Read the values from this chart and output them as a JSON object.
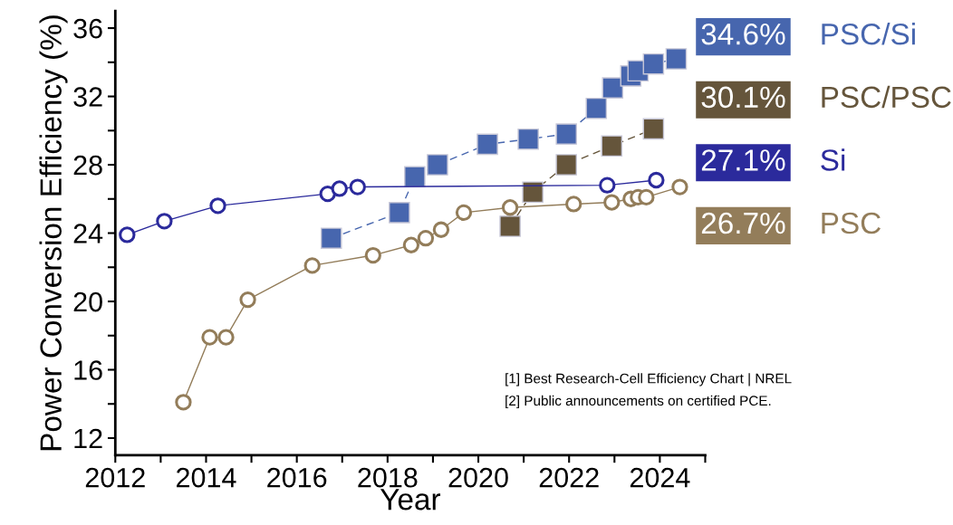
{
  "chart_data": {
    "type": "line",
    "xlabel": "Year",
    "ylabel": "Power Conversion Efficiency (%)",
    "xlim": [
      2012,
      2025
    ],
    "ylim": [
      11,
      37
    ],
    "xticks": [
      2012,
      {
        "value": 2013,
        "label": null
      },
      2014,
      {
        "value": 2015,
        "label": null
      },
      2016,
      {
        "value": 2017,
        "label": null
      },
      2018,
      {
        "value": 2019,
        "label": null
      },
      2020,
      {
        "value": 2021,
        "label": null
      },
      2022,
      {
        "value": 2023,
        "label": null
      },
      2024,
      {
        "value": 2025,
        "label": null
      }
    ],
    "yticks": [
      12,
      {
        "value": 14,
        "label": null
      },
      16,
      {
        "value": 18,
        "label": null
      },
      20,
      {
        "value": 22,
        "label": null
      },
      24,
      {
        "value": 26,
        "label": null
      },
      28,
      {
        "value": 30,
        "label": null
      },
      32,
      {
        "value": 34,
        "label": null
      },
      36
    ],
    "grid": false,
    "legend": "right",
    "series": [
      {
        "name": "PSC/Si",
        "color": "#4766ae",
        "marker": "square",
        "line_style": "dashed",
        "x": [
          2016.76,
          2018.26,
          2018.6,
          2019.1,
          2020.2,
          2021.1,
          2021.94,
          2022.6,
          2022.96,
          2023.36,
          2023.52,
          2023.86,
          2024.36
        ],
        "values": [
          23.7,
          25.2,
          27.3,
          28.0,
          29.2,
          29.5,
          29.8,
          31.3,
          32.5,
          33.2,
          33.5,
          33.9,
          34.2
        ]
      },
      {
        "name": "PSC/PSC",
        "color": "#65553b",
        "marker": "square",
        "line_style": "dashed",
        "x": [
          2020.7,
          2021.2,
          2021.94,
          2022.94,
          2023.86
        ],
        "values": [
          24.4,
          26.4,
          28.0,
          29.1,
          30.1
        ]
      },
      {
        "name": "Si",
        "color": "#2b2a9c",
        "marker": "circle",
        "line_style": "solid",
        "x": [
          2012.26,
          2013.08,
          2014.26,
          2016.68,
          2016.94,
          2017.34,
          2022.84,
          2023.92
        ],
        "values": [
          23.9,
          24.7,
          25.6,
          26.3,
          26.6,
          26.7,
          26.8,
          27.1
        ]
      },
      {
        "name": "PSC",
        "color": "#937d5a",
        "marker": "circle",
        "line_style": "solid",
        "x": [
          2013.5,
          2014.08,
          2014.44,
          2014.92,
          2016.34,
          2017.68,
          2018.52,
          2018.84,
          2019.18,
          2019.68,
          2020.7,
          2022.1,
          2022.94,
          2023.36,
          2023.52,
          2023.7,
          2024.44
        ],
        "values": [
          14.1,
          17.9,
          17.9,
          20.1,
          22.1,
          22.7,
          23.3,
          23.7,
          24.2,
          25.2,
          25.5,
          25.7,
          25.8,
          26.0,
          26.1,
          26.1,
          26.7
        ]
      }
    ],
    "annotations": [
      "34.6%",
      "30.1%",
      "27.1%",
      "26.7%",
      "[1] Best Research-Cell Efficiency Chart | NREL",
      "[2] Public announcements on certified PCE."
    ]
  }
}
